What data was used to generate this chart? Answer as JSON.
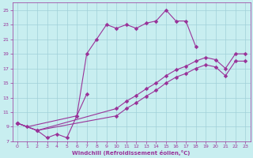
{
  "xlabel": "Windchill (Refroidissement éolien,°C)",
  "bg_color": "#c8eef0",
  "grid_color": "#a0d0d8",
  "line_color": "#993399",
  "xlim": [
    -0.5,
    23.5
  ],
  "ylim": [
    7,
    26
  ],
  "xticks": [
    0,
    1,
    2,
    3,
    4,
    5,
    6,
    7,
    8,
    9,
    10,
    11,
    12,
    13,
    14,
    15,
    16,
    17,
    18,
    19,
    20,
    21,
    22,
    23
  ],
  "yticks": [
    7,
    9,
    11,
    13,
    15,
    17,
    19,
    21,
    23,
    25
  ],
  "s1_x": [
    0,
    1,
    6,
    7,
    8,
    9,
    10,
    11,
    12,
    13,
    14,
    15,
    16,
    17,
    18
  ],
  "s1_y": [
    9.5,
    9.0,
    10.5,
    19.0,
    21.0,
    23.0,
    22.5,
    23.0,
    22.5,
    23.2,
    23.5,
    25.0,
    23.5,
    23.5,
    20.0
  ],
  "s2_x": [
    0,
    2,
    3,
    4,
    5,
    6,
    7
  ],
  "s2_y": [
    9.5,
    8.5,
    7.5,
    8.0,
    7.5,
    10.5,
    13.5
  ],
  "s3_x": [
    0,
    2,
    10,
    11,
    12,
    13,
    14,
    15,
    16,
    17,
    18,
    19,
    20,
    21,
    22,
    23
  ],
  "s3_y": [
    9.5,
    8.5,
    11.5,
    12.5,
    13.3,
    14.2,
    15.0,
    16.0,
    16.8,
    17.3,
    18.0,
    18.5,
    18.2,
    17.0,
    19.0,
    19.0
  ],
  "s4_x": [
    0,
    2,
    10,
    11,
    12,
    13,
    14,
    15,
    16,
    17,
    18,
    19,
    20,
    21,
    22,
    23
  ],
  "s4_y": [
    9.5,
    8.5,
    10.5,
    11.5,
    12.3,
    13.2,
    14.0,
    15.0,
    15.8,
    16.3,
    17.0,
    17.5,
    17.2,
    16.0,
    18.0,
    18.0
  ]
}
